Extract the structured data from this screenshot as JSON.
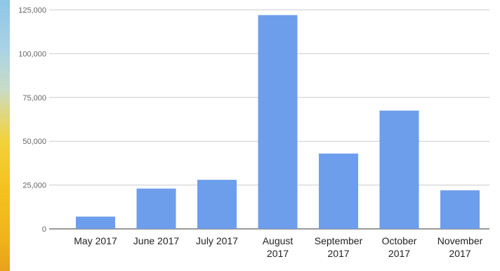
{
  "chart_data": {
    "type": "bar",
    "title": "",
    "xlabel": "",
    "ylabel": "",
    "categories": [
      [
        "May 2017"
      ],
      [
        "June 2017"
      ],
      [
        "July 2017"
      ],
      [
        "August",
        "2017"
      ],
      [
        "September",
        "2017"
      ],
      [
        "October",
        "2017"
      ],
      [
        "November",
        "2017"
      ]
    ],
    "values": [
      7000,
      23000,
      28000,
      122000,
      43000,
      67500,
      22000
    ],
    "ylim": [
      0,
      125000
    ],
    "yticks": [
      0,
      25000,
      50000,
      75000,
      100000,
      125000
    ],
    "ytick_labels": [
      "0",
      "25,000",
      "50,000",
      "75,000",
      "100,000",
      "125,000"
    ],
    "bar_color": "#6d9eeb",
    "grid": true,
    "legend": "none"
  }
}
